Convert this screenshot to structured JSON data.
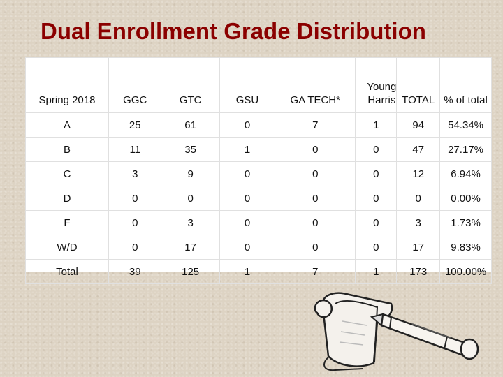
{
  "title": "Dual Enrollment Grade Distribution",
  "table": {
    "headers": [
      "Spring 2018",
      "GGC",
      "GTC",
      "GSU",
      "GA TECH*",
      "Young Harris",
      "TOTAL",
      "% of total"
    ],
    "rows": [
      [
        "A",
        "25",
        "61",
        "0",
        "7",
        "1",
        "94",
        "54.34%"
      ],
      [
        "B",
        "11",
        "35",
        "1",
        "0",
        "0",
        "47",
        "27.17%"
      ],
      [
        "C",
        "3",
        "9",
        "0",
        "0",
        "0",
        "12",
        "6.94%"
      ],
      [
        "D",
        "0",
        "0",
        "0",
        "0",
        "0",
        "0",
        "0.00%"
      ],
      [
        "F",
        "0",
        "3",
        "0",
        "0",
        "0",
        "3",
        "1.73%"
      ],
      [
        "W/D",
        "0",
        "17",
        "0",
        "0",
        "0",
        "17",
        "9.83%"
      ],
      [
        "Total",
        "39",
        "125",
        "1",
        "7",
        "1",
        "173",
        "100.00%"
      ]
    ]
  },
  "illustration": {
    "icon": "scroll-and-pen-icon"
  }
}
